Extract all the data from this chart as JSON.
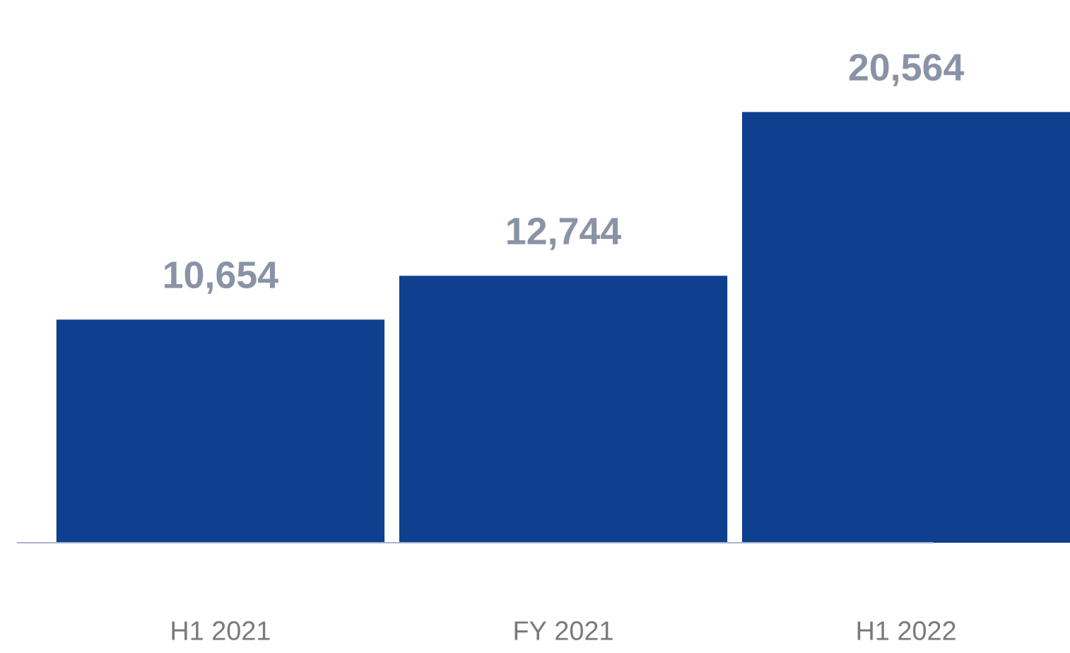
{
  "chart_data": {
    "type": "bar",
    "categories": [
      "H1 2021",
      "FY 2021",
      "H1 2022"
    ],
    "values": [
      10654,
      12744,
      20564
    ],
    "value_labels": [
      "10,654",
      "12,744",
      "20,564"
    ],
    "color": "#0f3f8f"
  }
}
